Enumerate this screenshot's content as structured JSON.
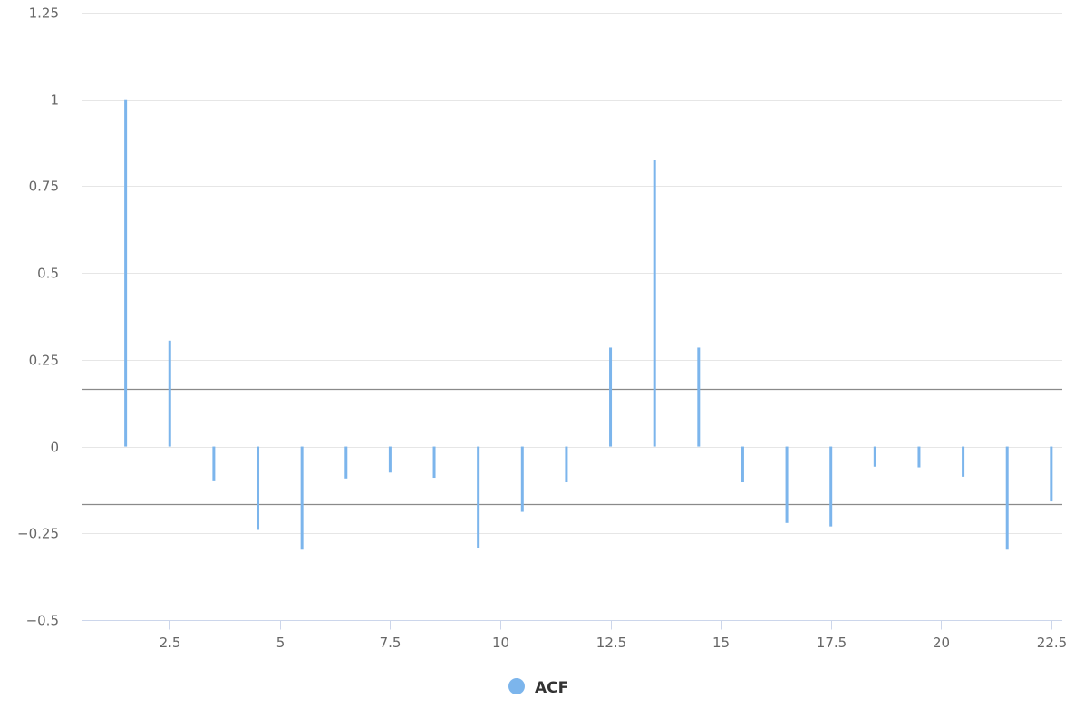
{
  "chart_data": {
    "type": "bar",
    "title": "",
    "xlabel": "",
    "ylabel": "",
    "xlim": [
      0.5,
      22.75
    ],
    "ylim": [
      -0.5,
      1.25
    ],
    "x_ticks": [
      2.5,
      5,
      7.5,
      10,
      12.5,
      15,
      17.5,
      20,
      22.5
    ],
    "x_tick_labels": [
      "2.5",
      "5",
      "7.5",
      "10",
      "12.5",
      "15",
      "17.5",
      "20",
      "22.5"
    ],
    "y_ticks": [
      -0.5,
      -0.25,
      0,
      0.25,
      0.5,
      0.75,
      1,
      1.25
    ],
    "y_tick_labels": [
      "−0.5",
      "−0.25",
      "0",
      "0.25",
      "0.5",
      "0.75",
      "1",
      "1.25"
    ],
    "grid": true,
    "confidence_bounds": [
      0.165,
      -0.165
    ],
    "series": [
      {
        "name": "ACF",
        "color": "#7cb5ec",
        "x": [
          1.5,
          2.5,
          3.5,
          4.5,
          5.5,
          6.5,
          7.5,
          8.5,
          9.5,
          10.5,
          11.5,
          12.5,
          13.5,
          14.5,
          15.5,
          16.5,
          17.5,
          18.5,
          19.5,
          20.5,
          21.5,
          22.5
        ],
        "values": [
          1.0,
          0.305,
          -0.1,
          -0.24,
          -0.297,
          -0.092,
          -0.075,
          -0.09,
          -0.293,
          -0.188,
          -0.103,
          0.285,
          0.825,
          0.285,
          -0.103,
          -0.22,
          -0.23,
          -0.058,
          -0.06,
          -0.087,
          -0.297,
          -0.158
        ]
      }
    ],
    "legend": {
      "position": "bottom-center",
      "items": [
        {
          "label": "ACF",
          "color": "#7cb5ec"
        }
      ]
    }
  }
}
